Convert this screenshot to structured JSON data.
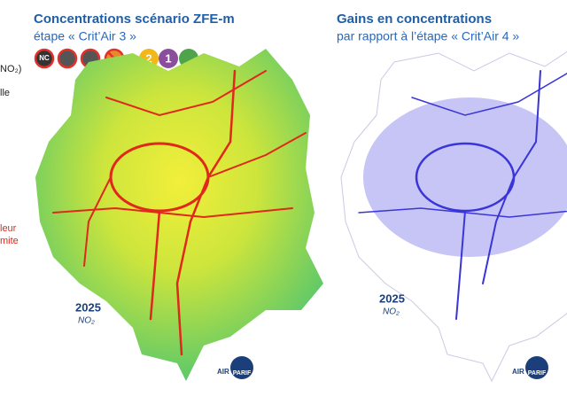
{
  "left_panel": {
    "title": "Concentrations scénario ZFE-m",
    "subtitle": "étape « Crit’Air 3 »",
    "badges": [
      "NC",
      "2",
      "1"
    ],
    "year": "2025",
    "pollutant": "NO₂"
  },
  "right_panel": {
    "title": "Gains en concentrations",
    "subtitle": "par rapport à l’étape « Crit’Air 4 »",
    "year": "2025",
    "pollutant": "NO₂"
  },
  "side_fragments": [
    "NO₂)",
    "lle",
    "leur",
    "mite"
  ],
  "logo": {
    "prefix": "AIR",
    "name": "PARIF"
  }
}
